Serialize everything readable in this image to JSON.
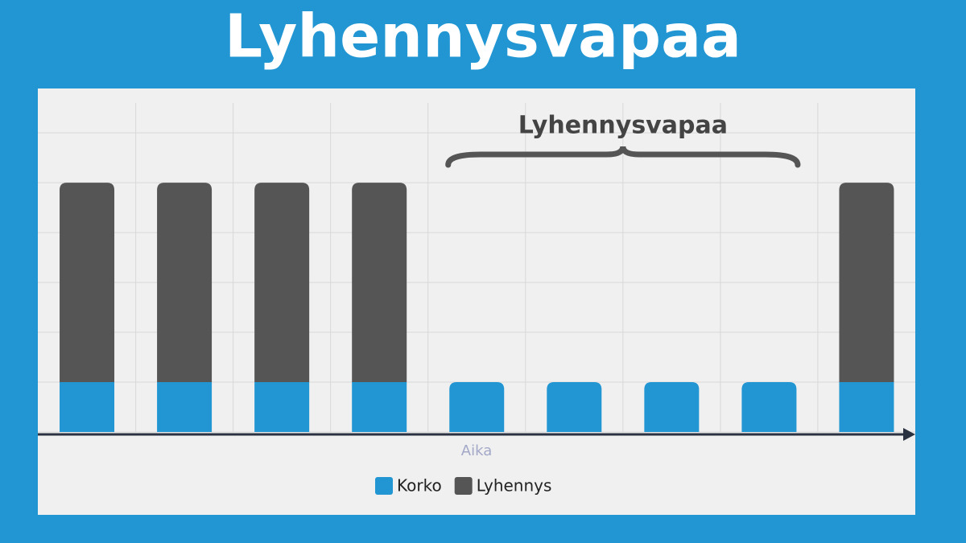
{
  "chart_data": {
    "type": "stacked_bar",
    "title": "Lyhennysvapaa",
    "x_label": "Aika",
    "categories": [
      null,
      null,
      null,
      null,
      null,
      null,
      null,
      null,
      null
    ],
    "series": [
      {
        "name": "Korko",
        "color": "#2196d3",
        "values": [
          1,
          1,
          1,
          1,
          1,
          1,
          1,
          1,
          1
        ]
      },
      {
        "name": "Lyhennys",
        "color": "#555555",
        "values": [
          4,
          4,
          4,
          4,
          0,
          0,
          0,
          0,
          4
        ]
      }
    ],
    "ylim": [
      0,
      6.6
    ],
    "yticks": [
      0,
      1,
      2,
      3,
      4,
      5,
      6
    ],
    "grid": true,
    "annotations": [
      {
        "text": "Lyhennysvapaa",
        "from": 4,
        "to": 7
      }
    ],
    "legend": "bottom"
  }
}
